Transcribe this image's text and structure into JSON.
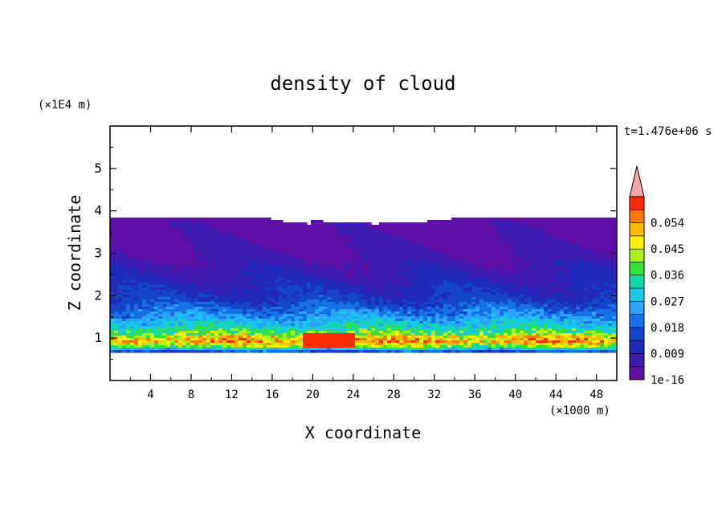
{
  "chart_data": {
    "type": "heatmap",
    "title": "density of cloud",
    "xlabel": "X coordinate",
    "ylabel": "Z coordinate",
    "x_unit": "(×1000 m)",
    "y_unit": "(×1E4 m)",
    "time_label": "t=1.476e+06 s",
    "xlim": [
      0,
      50
    ],
    "ylim": [
      0,
      6
    ],
    "x_ticks": [
      "4",
      "8",
      "12",
      "16",
      "20",
      "24",
      "28",
      "32",
      "36",
      "40",
      "44",
      "48"
    ],
    "y_ticks": [
      "1",
      "2",
      "3",
      "4",
      "5"
    ],
    "colorbar": {
      "labels": [
        "1e-16",
        "0.009",
        "0.018",
        "0.027",
        "0.036",
        "0.045",
        "0.054"
      ],
      "levels": [
        1e-16,
        0.0045,
        0.009,
        0.0135,
        0.018,
        0.0225,
        0.027,
        0.0315,
        0.036,
        0.0405,
        0.045,
        0.0495,
        0.054,
        0.0585
      ],
      "colors": [
        "#5e0fa6",
        "#3b1bb0",
        "#1f2bb8",
        "#1546c8",
        "#1670e6",
        "#2aa2ff",
        "#18c8e8",
        "#14d8a8",
        "#38e03a",
        "#a8f01c",
        "#fff000",
        "#ffb800",
        "#ff7800",
        "#ff2a00",
        "#f5a7a7"
      ],
      "extend": "max"
    },
    "profile": {
      "z_km": [
        6.5,
        8.0,
        9.0,
        10.0,
        11.0,
        13.0,
        15.0,
        17.0,
        19.0,
        22.0,
        25.0,
        28.0,
        31.0,
        34.0,
        37.0,
        38.5
      ],
      "density": [
        0.009,
        0.04,
        0.052,
        0.05,
        0.04,
        0.03,
        0.024,
        0.019,
        0.014,
        0.011,
        0.008,
        0.006,
        0.004,
        0.003,
        0.002,
        0.001
      ]
    },
    "cloud_base_km": 6.5,
    "cloud_top_km": 38.5
  }
}
